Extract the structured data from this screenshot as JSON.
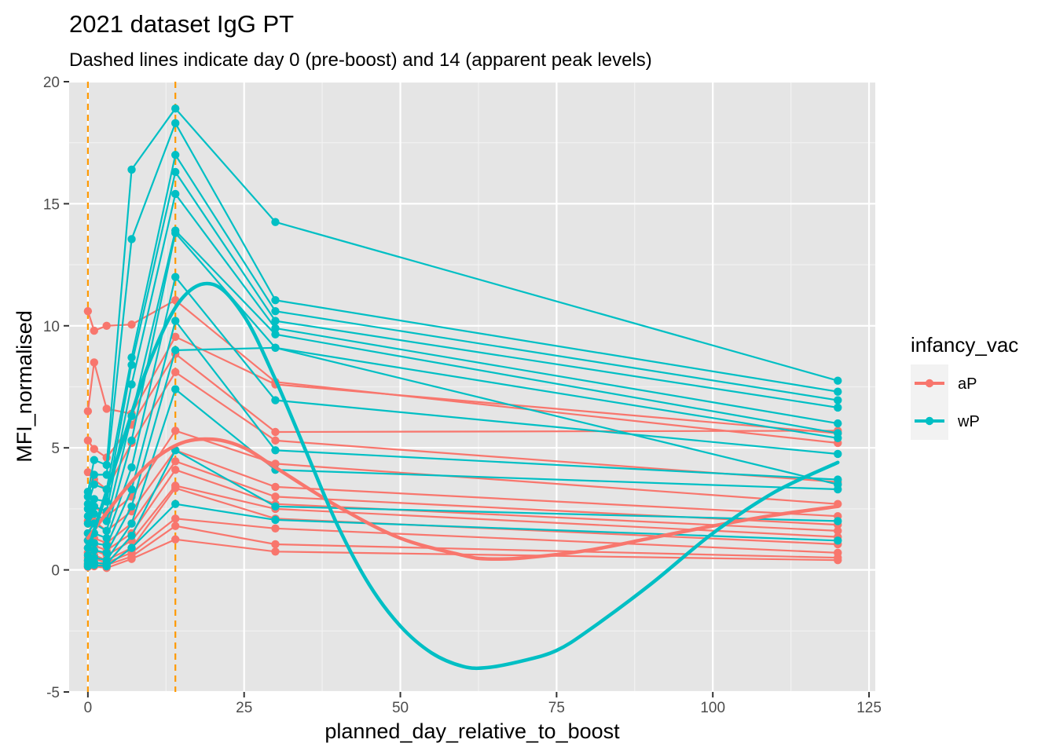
{
  "chart_data": {
    "type": "line",
    "title": "2021 dataset IgG PT",
    "subtitle": "Dashed lines indicate day 0 (pre-boost) and 14 (apparent peak levels)",
    "xlabel": "planned_day_relative_to_boost",
    "ylabel": "MFI_normalised",
    "xlim": [
      -3,
      126
    ],
    "ylim": [
      -5,
      20
    ],
    "x_ticks": [
      0,
      25,
      50,
      75,
      100,
      125
    ],
    "y_ticks": [
      -5,
      0,
      5,
      10,
      15,
      20
    ],
    "x_tick_labels": [
      "0",
      "25",
      "50",
      "75",
      "100",
      "125"
    ],
    "y_tick_labels": [
      "-5",
      "0",
      "5",
      "10",
      "15",
      "20"
    ],
    "grid": true,
    "background": "#e5e5e5",
    "vlines": [
      {
        "x": 0,
        "color": "#ff9900",
        "style": "dashed"
      },
      {
        "x": 14,
        "color": "#ff9900",
        "style": "dashed"
      }
    ],
    "legend": {
      "title": "infancy_vac",
      "position": "right",
      "entries": [
        {
          "label": "aP",
          "color": "#f8766d"
        },
        {
          "label": "wP",
          "color": "#00bfc4"
        }
      ]
    },
    "series": [
      {
        "group": "aP",
        "x": [
          0,
          1,
          3,
          7,
          14,
          30,
          120
        ],
        "y": [
          10.6,
          9.8,
          10.0,
          10.05,
          11.05,
          7.7,
          5.2
        ]
      },
      {
        "group": "aP",
        "x": [
          0,
          1,
          3,
          7,
          14,
          30,
          120
        ],
        "y": [
          6.5,
          8.5,
          6.6,
          6.4,
          9.55,
          7.6,
          5.6
        ]
      },
      {
        "group": "aP",
        "x": [
          0,
          1,
          3,
          7,
          14,
          30,
          120
        ],
        "y": [
          5.3,
          4.95,
          4.6,
          5.95,
          8.85,
          5.65,
          5.7
        ]
      },
      {
        "group": "aP",
        "x": [
          0,
          1,
          3,
          7,
          14,
          30,
          120
        ],
        "y": [
          4.0,
          3.7,
          3.3,
          5.2,
          8.1,
          5.3,
          3.6
        ]
      },
      {
        "group": "aP",
        "x": [
          0,
          1,
          3,
          7,
          14,
          30,
          120
        ],
        "y": [
          2.0,
          2.6,
          2.2,
          3.0,
          5.7,
          4.35,
          2.7
        ]
      },
      {
        "group": "aP",
        "x": [
          0,
          1,
          3,
          7,
          14,
          30,
          120
        ],
        "y": [
          1.5,
          2.0,
          1.6,
          2.4,
          4.9,
          3.4,
          2.2
        ]
      },
      {
        "group": "aP",
        "x": [
          0,
          1,
          3,
          7,
          14,
          30,
          120
        ],
        "y": [
          1.2,
          1.3,
          1.1,
          1.9,
          4.45,
          3.0,
          1.85
        ]
      },
      {
        "group": "aP",
        "x": [
          0,
          1,
          3,
          7,
          14,
          30,
          120
        ],
        "y": [
          0.9,
          1.0,
          0.8,
          1.5,
          4.1,
          2.7,
          1.6
        ]
      },
      {
        "group": "aP",
        "x": [
          0,
          1,
          3,
          7,
          14,
          30,
          120
        ],
        "y": [
          0.7,
          0.8,
          0.6,
          1.2,
          3.45,
          2.5,
          1.35
        ]
      },
      {
        "group": "aP",
        "x": [
          0,
          1,
          3,
          7,
          14,
          30,
          120
        ],
        "y": [
          0.5,
          0.6,
          0.4,
          0.9,
          3.35,
          2.1,
          1.05
        ]
      },
      {
        "group": "aP",
        "x": [
          0,
          1,
          3,
          7,
          14,
          30,
          120
        ],
        "y": [
          0.35,
          0.45,
          0.3,
          0.7,
          2.1,
          1.7,
          0.7
        ]
      },
      {
        "group": "aP",
        "x": [
          0,
          1,
          3,
          7,
          14,
          30,
          120
        ],
        "y": [
          0.2,
          0.3,
          0.2,
          0.55,
          1.8,
          1.05,
          0.5
        ]
      },
      {
        "group": "aP",
        "x": [
          0,
          1,
          3,
          7,
          14,
          30,
          120
        ],
        "y": [
          0.12,
          0.15,
          0.08,
          0.45,
          1.25,
          0.75,
          0.4
        ]
      },
      {
        "group": "wP",
        "x": [
          0,
          1,
          3,
          7,
          14,
          30,
          120
        ],
        "y": [
          3.2,
          4.5,
          4.3,
          16.4,
          18.9,
          14.25,
          7.75
        ]
      },
      {
        "group": "wP",
        "x": [
          0,
          1,
          3,
          7,
          14,
          30,
          120
        ],
        "y": [
          3.0,
          3.9,
          3.9,
          13.55,
          18.3,
          11.05,
          7.3
        ]
      },
      {
        "group": "wP",
        "x": [
          0,
          1,
          3,
          7,
          14,
          30,
          120
        ],
        "y": [
          2.7,
          3.5,
          3.3,
          8.7,
          17.0,
          10.6,
          6.95
        ]
      },
      {
        "group": "wP",
        "x": [
          0,
          1,
          3,
          7,
          14,
          30,
          120
        ],
        "y": [
          2.5,
          2.9,
          2.8,
          8.4,
          16.3,
          10.2,
          6.65
        ]
      },
      {
        "group": "wP",
        "x": [
          0,
          1,
          3,
          7,
          14,
          30,
          120
        ],
        "y": [
          2.2,
          2.6,
          2.4,
          7.6,
          15.4,
          9.9,
          6.0
        ]
      },
      {
        "group": "wP",
        "x": [
          0,
          1,
          3,
          7,
          14,
          30,
          120
        ],
        "y": [
          1.9,
          2.3,
          2.0,
          6.3,
          13.9,
          9.65,
          5.6
        ]
      },
      {
        "group": "wP",
        "x": [
          0,
          1,
          3,
          7,
          14,
          30,
          120
        ],
        "y": [
          1.5,
          1.9,
          1.6,
          5.3,
          13.8,
          9.1,
          5.4
        ]
      },
      {
        "group": "wP",
        "x": [
          0,
          1,
          3,
          7,
          14,
          30,
          120
        ],
        "y": [
          1.2,
          1.5,
          1.3,
          4.2,
          12.0,
          6.95,
          4.75
        ]
      },
      {
        "group": "wP",
        "x": [
          0,
          1,
          3,
          7,
          14,
          30,
          120
        ],
        "y": [
          0.9,
          1.1,
          1.0,
          3.3,
          10.2,
          4.9,
          3.7
        ]
      },
      {
        "group": "wP",
        "x": [
          0,
          1,
          3,
          7,
          14,
          30,
          120
        ],
        "y": [
          0.6,
          0.8,
          0.7,
          2.6,
          9.0,
          9.1,
          3.5
        ]
      },
      {
        "group": "wP",
        "x": [
          0,
          1,
          3,
          7,
          14,
          30,
          120
        ],
        "y": [
          0.4,
          0.5,
          0.4,
          1.9,
          7.4,
          4.1,
          3.3
        ]
      },
      {
        "group": "wP",
        "x": [
          0,
          1,
          3,
          7,
          14,
          30,
          120
        ],
        "y": [
          0.25,
          0.3,
          0.25,
          1.4,
          4.9,
          2.6,
          2.0
        ]
      },
      {
        "group": "wP",
        "x": [
          0,
          1,
          3,
          7,
          14,
          30,
          120
        ],
        "y": [
          0.15,
          0.2,
          0.15,
          0.9,
          2.7,
          2.05,
          1.2
        ]
      }
    ],
    "smooth_lines": [
      {
        "group": "aP",
        "x": [
          0,
          5,
          10,
          15,
          20,
          25,
          30,
          40,
          50,
          60,
          64,
          70,
          80,
          90,
          100,
          110,
          120
        ],
        "y": [
          1.3,
          3.0,
          4.4,
          5.2,
          5.35,
          5.0,
          4.2,
          2.6,
          1.3,
          0.6,
          0.45,
          0.5,
          0.8,
          1.3,
          1.8,
          2.25,
          2.6
        ]
      },
      {
        "group": "wP",
        "x": [
          0,
          5,
          10,
          15,
          20,
          25,
          30,
          35,
          40,
          45,
          50,
          55,
          60,
          64,
          70,
          75,
          80,
          90,
          100,
          110,
          120
        ],
        "y": [
          0.8,
          4.8,
          8.6,
          11.1,
          11.7,
          10.4,
          7.8,
          4.8,
          1.8,
          -0.6,
          -2.3,
          -3.4,
          -3.95,
          -4.0,
          -3.7,
          -3.3,
          -2.5,
          -0.6,
          1.5,
          3.2,
          4.4
        ]
      }
    ]
  }
}
